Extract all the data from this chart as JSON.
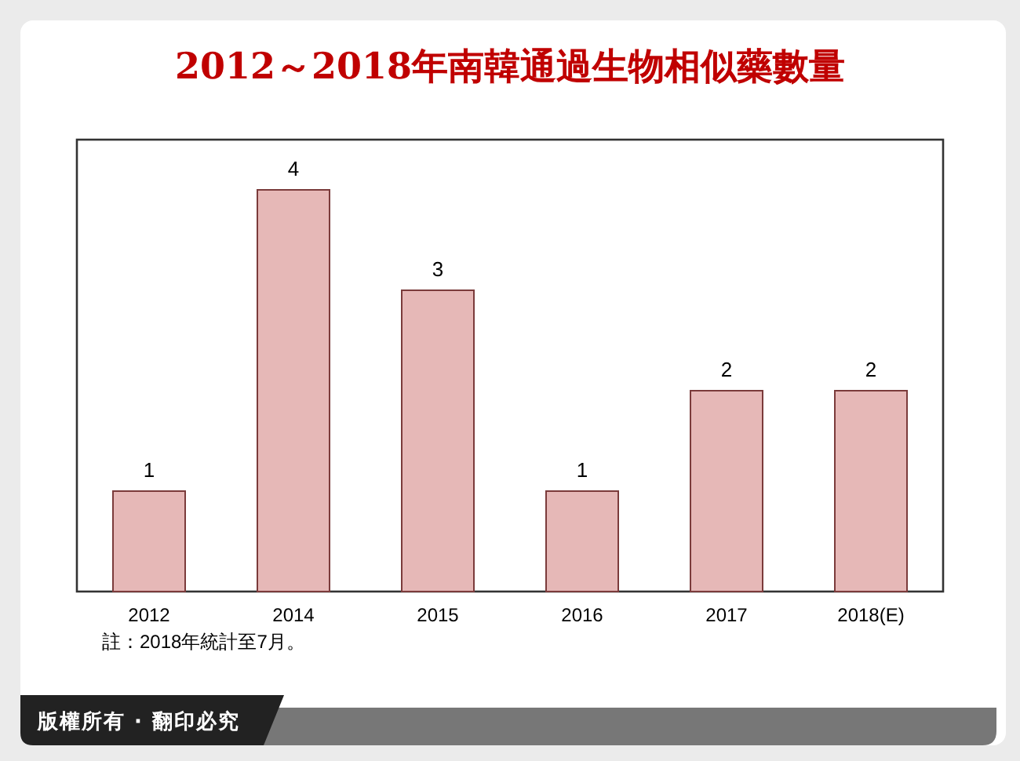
{
  "chart_data": {
    "type": "bar",
    "title": "2012～2018年南韓通過生物相似藥數量",
    "categories": [
      "2012",
      "2014",
      "2015",
      "2016",
      "2017",
      "2018(E)"
    ],
    "values": [
      1,
      4,
      3,
      1,
      2,
      2
    ],
    "color": "#e6b8b7",
    "data_labels": true,
    "annotations": [
      "註：2018年統計至7月。",
      "版權所有 · 翻印必究"
    ]
  }
}
